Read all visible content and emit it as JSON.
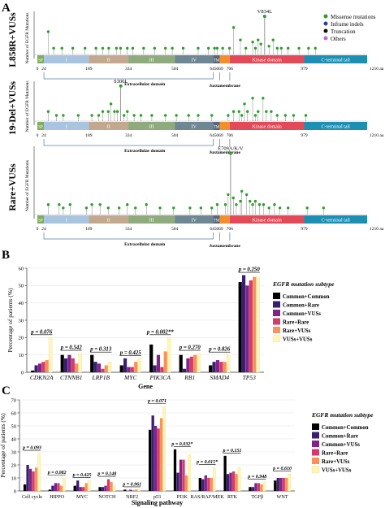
{
  "figure": {
    "panel_a_label": "A",
    "panel_b_label": "B",
    "panel_c_label": "C"
  },
  "lollipop": {
    "y_label": "Number of EGFR Mutations",
    "aa_unit": "1210 aa",
    "positions": [
      "0",
      "24",
      "189",
      "334",
      "504",
      "645",
      "669",
      "706",
      "979"
    ],
    "domain_labels": {
      "sp": "SP",
      "d1": "I",
      "d2": "II",
      "d3": "III",
      "d4": "IV",
      "tm": "TM",
      "kinase": "Kinase domain",
      "cterm": "C-terminal tail"
    },
    "extracellular": "Extracellular domain",
    "juxtamembrane": "Juxtamembrane",
    "legend": [
      {
        "label": "Missense mutations",
        "color": "#2e9e2e"
      },
      {
        "label": "Inframe indels",
        "color": "#2d3f8f"
      },
      {
        "label": "Truncation",
        "color": "#111111"
      },
      {
        "label": "Others",
        "color": "#b36bd6"
      }
    ],
    "colors": {
      "sp": "#7fae59",
      "d1": "#a9c4df",
      "d2": "#c2a88f",
      "d3": "#8faa7d",
      "d4": "#6f8793",
      "tm": "#58677a",
      "jm": "#f28e2b",
      "kinase": "#e24a57",
      "cterm": "#1d8fb3"
    },
    "tracks": [
      {
        "name": "L858R+VUSs",
        "annotation": "V834L",
        "annot_pos": 834,
        "annot_h": 0.92,
        "lollipops": [
          [
            40,
            0.55
          ],
          [
            60,
            0.15
          ],
          [
            90,
            0.15
          ],
          [
            130,
            0.15
          ],
          [
            175,
            0.15
          ],
          [
            215,
            0.15
          ],
          [
            240,
            0.15
          ],
          [
            262,
            0.15
          ],
          [
            290,
            0.15
          ],
          [
            305,
            0.15
          ],
          [
            330,
            0.15
          ],
          [
            350,
            0.15
          ],
          [
            390,
            0.15
          ],
          [
            430,
            0.15
          ],
          [
            470,
            0.15
          ],
          [
            495,
            0.15
          ],
          [
            535,
            0.15
          ],
          [
            590,
            0.15
          ],
          [
            628,
            0.15
          ],
          [
            650,
            0.15
          ],
          [
            660,
            0.15
          ],
          [
            680,
            0.15
          ],
          [
            705,
            0.15
          ],
          [
            720,
            0.65
          ],
          [
            745,
            0.35
          ],
          [
            765,
            0.15
          ],
          [
            790,
            0.3
          ],
          [
            800,
            0.15
          ],
          [
            810,
            0.35
          ],
          [
            820,
            0.25
          ],
          [
            834,
            0.92
          ],
          [
            850,
            0.2
          ],
          [
            865,
            0.35
          ],
          [
            880,
            0.15
          ],
          [
            895,
            0.15
          ],
          [
            920,
            0.15
          ],
          [
            960,
            0.15
          ],
          [
            995,
            0.15
          ],
          [
            1020,
            0.15
          ]
        ]
      },
      {
        "name": "19-Del+VUSs",
        "annotation": "S306L",
        "annot_pos": 306,
        "annot_h": 0.92,
        "lollipops": [
          [
            40,
            0.25
          ],
          [
            70,
            0.15
          ],
          [
            95,
            0.15
          ],
          [
            150,
            0.15
          ],
          [
            200,
            0.15
          ],
          [
            225,
            0.15
          ],
          [
            240,
            0.25
          ],
          [
            260,
            0.25
          ],
          [
            270,
            0.45
          ],
          [
            283,
            0.25
          ],
          [
            294,
            0.25
          ],
          [
            306,
            0.92
          ],
          [
            318,
            0.15
          ],
          [
            330,
            0.25
          ],
          [
            355,
            0.15
          ],
          [
            380,
            0.15
          ],
          [
            420,
            0.15
          ],
          [
            470,
            0.15
          ],
          [
            510,
            0.15
          ],
          [
            555,
            0.15
          ],
          [
            590,
            0.15
          ],
          [
            640,
            0.15
          ],
          [
            700,
            0.15
          ],
          [
            720,
            0.25
          ],
          [
            740,
            0.25
          ],
          [
            750,
            0.15
          ],
          [
            760,
            0.45
          ],
          [
            771,
            0.25
          ],
          [
            790,
            0.6
          ],
          [
            800,
            0.15
          ],
          [
            810,
            0.25
          ],
          [
            828,
            0.6
          ],
          [
            840,
            0.25
          ],
          [
            858,
            0.25
          ],
          [
            880,
            0.15
          ],
          [
            910,
            0.15
          ],
          [
            940,
            0.15
          ],
          [
            985,
            0.15
          ]
        ]
      },
      {
        "name": "Rare+VUSs",
        "annotation": "E709A/K/V",
        "annot_pos": 709,
        "annot_h": 0.92,
        "lollipops": [
          [
            40,
            0.15
          ],
          [
            80,
            0.15
          ],
          [
            95,
            0.1
          ],
          [
            120,
            0.15
          ],
          [
            180,
            0.1
          ],
          [
            200,
            0.15
          ],
          [
            230,
            0.15
          ],
          [
            260,
            0.1
          ],
          [
            300,
            0.1
          ],
          [
            330,
            0.15
          ],
          [
            360,
            0.1
          ],
          [
            400,
            0.15
          ],
          [
            450,
            0.1
          ],
          [
            500,
            0.1
          ],
          [
            560,
            0.1
          ],
          [
            600,
            0.1
          ],
          [
            640,
            0.1
          ],
          [
            660,
            0.15
          ],
          [
            690,
            0.15
          ],
          [
            700,
            0.3
          ],
          [
            709,
            0.92
          ],
          [
            719,
            0.25
          ],
          [
            730,
            0.15
          ],
          [
            745,
            0.2
          ],
          [
            750,
            0.35
          ],
          [
            768,
            0.3
          ],
          [
            780,
            0.2
          ],
          [
            790,
            0.15
          ],
          [
            800,
            0.2
          ],
          [
            815,
            0.15
          ],
          [
            830,
            0.15
          ],
          [
            850,
            0.1
          ],
          [
            870,
            0.15
          ],
          [
            890,
            0.1
          ],
          [
            920,
            0.1
          ],
          [
            990,
            0.1
          ],
          [
            1050,
            0.1
          ]
        ]
      }
    ]
  },
  "chart_data": [
    {
      "type": "bar",
      "panel": "B",
      "legend_title": "EGFR mutation subtype",
      "ylabel": "Percentage of patients (%)",
      "xlabel": "Gene",
      "ylim": [
        0,
        60
      ],
      "yticks": [
        "0",
        "10",
        "20",
        "30",
        "40",
        "50",
        "60"
      ],
      "categories": [
        "CDKN2A",
        "CTNNB1",
        "LRP1B",
        "MYC",
        "PIK3CA",
        "RB1",
        "SMAD4",
        "TP53"
      ],
      "pvalues": [
        "p = 0.076",
        "p = 0.542",
        "p = 0.313",
        "p = 0.425",
        "p = 0.002**",
        "p = 0.270",
        "p = 0.826",
        "p = 0.250"
      ],
      "series": [
        {
          "name": "Common+Common",
          "color": "#000000",
          "values": [
            1,
            10,
            10,
            4,
            16,
            10,
            4,
            52
          ]
        },
        {
          "name": "Common+Rare",
          "color": "#3a1f6e",
          "values": [
            4,
            8,
            6,
            8,
            4,
            2,
            6,
            56
          ]
        },
        {
          "name": "Common+VUSs",
          "color": "#7e2487",
          "values": [
            5,
            10,
            5,
            3,
            10,
            8,
            7,
            50
          ]
        },
        {
          "name": "Rare+Rare",
          "color": "#d33c6a",
          "values": [
            6,
            8,
            2,
            3,
            3,
            9,
            6,
            53
          ]
        },
        {
          "name": "Rare+VUSs",
          "color": "#f8915a",
          "values": [
            7,
            5,
            4,
            6,
            12,
            10,
            6,
            55
          ]
        },
        {
          "name": "VUSs+VUSs",
          "color": "#fff5b8",
          "values": [
            20,
            11,
            6,
            8,
            20,
            11,
            10,
            55
          ]
        }
      ]
    },
    {
      "type": "bar",
      "panel": "C",
      "legend_title": "EGFR mutation subtype",
      "ylabel": "Percentage of patients (%)",
      "xlabel": "Signaling pathway",
      "ylim": [
        0,
        70
      ],
      "yticks": [
        "0",
        "10",
        "20",
        "30",
        "40",
        "50",
        "60",
        "70"
      ],
      "categories": [
        "Cell cycle",
        "HIPPO",
        "MYC",
        "NOTCH",
        "NRF2",
        "p53",
        "PI3K",
        "RAS/RAF/MEK",
        "RTK",
        "TGFβ",
        "WNT"
      ],
      "pvalues": [
        "p = 0.093",
        "p = 0.082",
        "p = 0.425",
        "p = 0.148",
        "p = 0.961",
        "p = 0.071",
        "p = 0.032*",
        "p = 0.015*",
        "p = 0.151",
        "p = 0.948",
        "p = 0.610"
      ],
      "series": [
        {
          "name": "Common+Common",
          "color": "#000000",
          "values": [
            5,
            1,
            4,
            3,
            1,
            47,
            32,
            10,
            27,
            3,
            8
          ]
        },
        {
          "name": "Common+Rare",
          "color": "#3a1f6e",
          "values": [
            20,
            4,
            8,
            3,
            0,
            58,
            14,
            9,
            13,
            3,
            10
          ]
        },
        {
          "name": "Common+VUSs",
          "color": "#7e2487",
          "values": [
            17,
            6,
            3,
            4,
            1,
            50,
            24,
            12,
            14,
            6,
            10
          ]
        },
        {
          "name": "Rare+Rare",
          "color": "#d33c6a",
          "values": [
            15,
            6,
            3,
            9,
            0,
            48,
            24,
            10,
            15,
            6,
            10
          ]
        },
        {
          "name": "Rare+VUSs",
          "color": "#f8915a",
          "values": [
            18,
            4,
            6,
            7,
            1,
            56,
            12,
            10,
            13,
            5,
            10
          ]
        },
        {
          "name": "VUSs+VUSs",
          "color": "#fff5b8",
          "values": [
            29,
            10,
            8,
            4,
            1,
            65,
            28,
            18,
            18,
            7,
            13
          ]
        }
      ]
    }
  ]
}
